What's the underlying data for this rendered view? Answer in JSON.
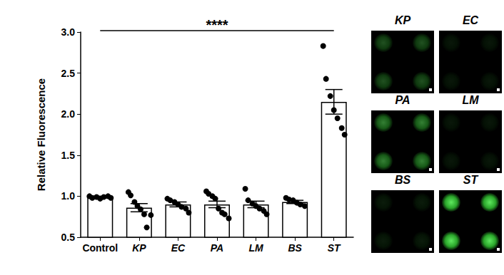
{
  "chart_data": {
    "type": "bar",
    "ylabel": "Relative Fluorescence",
    "categories": [
      "Control",
      "KP",
      "EC",
      "PA",
      "LM",
      "BS",
      "ST"
    ],
    "values": [
      0.99,
      0.86,
      0.9,
      0.9,
      0.9,
      0.93,
      2.15
    ],
    "errors": [
      0.01,
      0.05,
      0.03,
      0.04,
      0.04,
      0.02,
      0.15
    ],
    "points": [
      [
        1.0,
        0.98,
        0.99,
        0.97,
        0.99,
        1.0,
        0.98
      ],
      [
        1.05,
        1.01,
        0.93,
        0.88,
        0.84,
        0.78,
        0.62,
        0.77
      ],
      [
        0.97,
        0.95,
        0.93,
        0.9,
        0.87,
        0.85,
        0.8
      ],
      [
        1.06,
        1.03,
        1.0,
        0.97,
        0.85,
        0.8,
        0.78,
        0.73
      ],
      [
        1.09,
        0.95,
        0.91,
        0.88,
        0.85,
        0.82,
        0.78
      ],
      [
        0.98,
        0.96,
        0.95,
        0.92,
        0.9,
        0.88
      ],
      [
        2.83,
        2.43,
        2.22,
        2.05,
        1.95,
        1.83,
        1.75
      ]
    ],
    "color": "#ffffff",
    "ylim": [
      0.5,
      3.0
    ],
    "yticks": [
      0.5,
      {
        "value": 1,
        "label": "1.0"
      },
      1.5,
      {
        "value": 2,
        "label": "2.0"
      },
      2.5,
      {
        "value": 3,
        "label": "3.0"
      }
    ],
    "grid": false,
    "annotations": [
      {
        "text": "****",
        "from": "Control",
        "to": "ST"
      }
    ]
  },
  "image_panels": {
    "labels": [
      "KP",
      "EC",
      "PA",
      "LM",
      "BS",
      "ST"
    ]
  }
}
